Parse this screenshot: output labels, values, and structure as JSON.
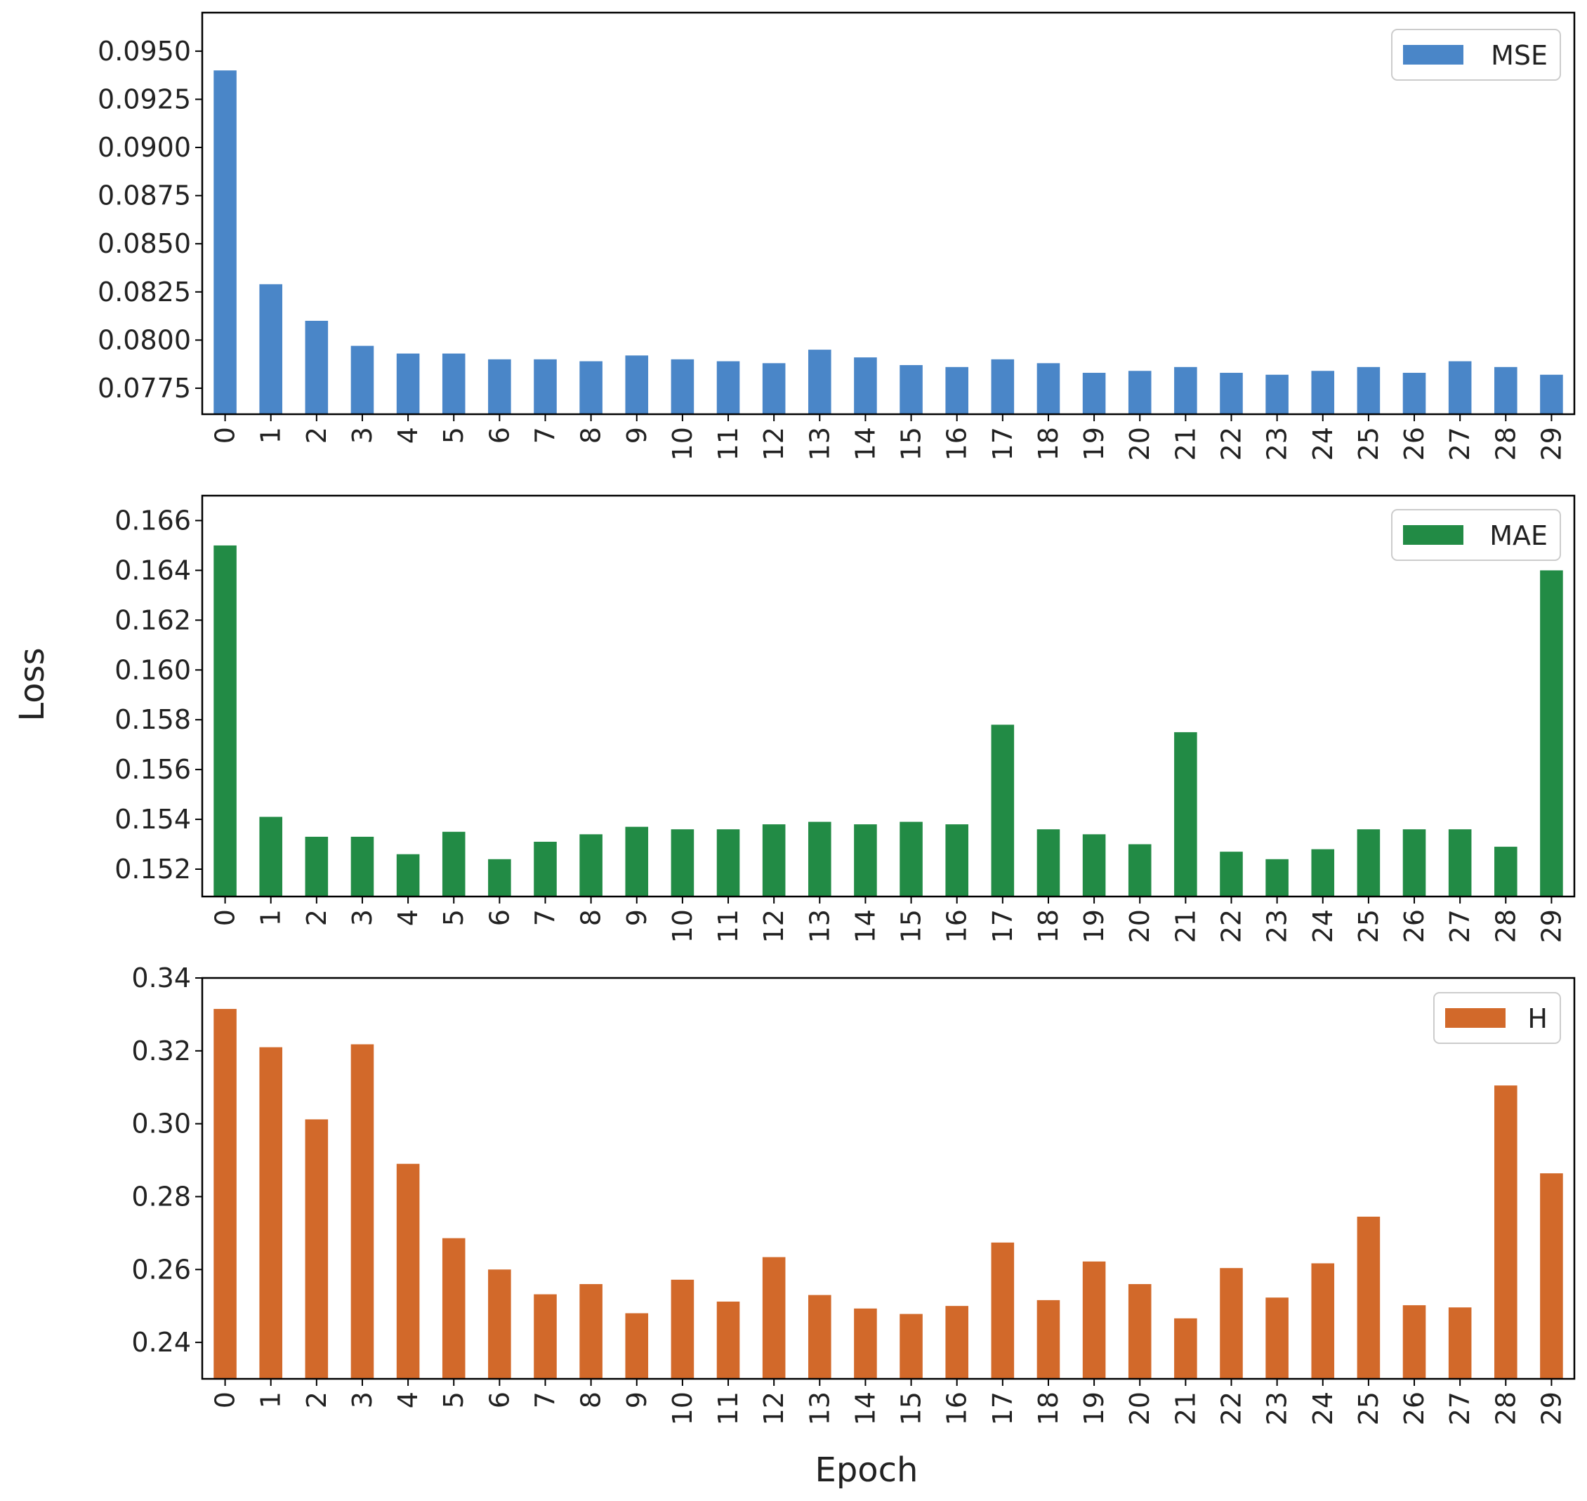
{
  "chart_data": [
    {
      "type": "bar",
      "series_name": "MSE",
      "color": "#4a86c8",
      "categories": [
        "0",
        "1",
        "2",
        "3",
        "4",
        "5",
        "6",
        "7",
        "8",
        "9",
        "10",
        "11",
        "12",
        "13",
        "14",
        "15",
        "16",
        "17",
        "18",
        "19",
        "20",
        "21",
        "22",
        "23",
        "24",
        "25",
        "26",
        "27",
        "28",
        "29"
      ],
      "values": [
        0.094,
        0.0829,
        0.081,
        0.0797,
        0.0793,
        0.0793,
        0.079,
        0.079,
        0.0789,
        0.0792,
        0.079,
        0.0789,
        0.0788,
        0.0795,
        0.0791,
        0.0787,
        0.0786,
        0.079,
        0.0788,
        0.0783,
        0.0784,
        0.0786,
        0.0783,
        0.0782,
        0.0784,
        0.0786,
        0.0783,
        0.0789,
        0.0786,
        0.0782
      ],
      "ylim": [
        0.07615,
        0.097
      ],
      "yticks": [
        0.0775,
        0.08,
        0.0825,
        0.085,
        0.0875,
        0.09,
        0.0925,
        0.095
      ],
      "ytick_labels": [
        "0.0775",
        "0.0800",
        "0.0825",
        "0.0850",
        "0.0875",
        "0.0900",
        "0.0925",
        "0.0950"
      ],
      "legend": "MSE",
      "legend_position": "top-right"
    },
    {
      "type": "bar",
      "series_name": "MAE",
      "color": "#228b45",
      "categories": [
        "0",
        "1",
        "2",
        "3",
        "4",
        "5",
        "6",
        "7",
        "8",
        "9",
        "10",
        "11",
        "12",
        "13",
        "14",
        "15",
        "16",
        "17",
        "18",
        "19",
        "20",
        "21",
        "22",
        "23",
        "24",
        "25",
        "26",
        "27",
        "28",
        "29"
      ],
      "values": [
        0.165,
        0.1541,
        0.1533,
        0.1533,
        0.1526,
        0.1535,
        0.1524,
        0.1531,
        0.1534,
        0.1537,
        0.1536,
        0.1536,
        0.1538,
        0.1539,
        0.1538,
        0.1539,
        0.1538,
        0.1578,
        0.1536,
        0.1534,
        0.153,
        0.1575,
        0.1527,
        0.1524,
        0.1528,
        0.1536,
        0.1536,
        0.1536,
        0.1529,
        0.164
      ],
      "ylim": [
        0.1509,
        0.167
      ],
      "yticks": [
        0.152,
        0.154,
        0.156,
        0.158,
        0.16,
        0.162,
        0.164,
        0.166
      ],
      "ytick_labels": [
        "0.152",
        "0.154",
        "0.156",
        "0.158",
        "0.160",
        "0.162",
        "0.164",
        "0.166"
      ],
      "legend": "MAE",
      "legend_position": "top-right"
    },
    {
      "type": "bar",
      "series_name": "H",
      "color": "#d2692a",
      "categories": [
        "0",
        "1",
        "2",
        "3",
        "4",
        "5",
        "6",
        "7",
        "8",
        "9",
        "10",
        "11",
        "12",
        "13",
        "14",
        "15",
        "16",
        "17",
        "18",
        "19",
        "20",
        "21",
        "22",
        "23",
        "24",
        "25",
        "26",
        "27",
        "28",
        "29"
      ],
      "values": [
        0.3315,
        0.321,
        0.3012,
        0.3218,
        0.289,
        0.2686,
        0.26,
        0.2532,
        0.256,
        0.248,
        0.2572,
        0.2512,
        0.2634,
        0.253,
        0.2493,
        0.2478,
        0.25,
        0.2674,
        0.2516,
        0.2622,
        0.256,
        0.2466,
        0.2604,
        0.2523,
        0.2617,
        0.2745,
        0.2502,
        0.2496,
        0.3105,
        0.2864
      ],
      "ylim": [
        0.23,
        0.34
      ],
      "yticks": [
        0.24,
        0.26,
        0.28,
        0.3,
        0.32,
        0.34
      ],
      "ytick_labels": [
        "0.24",
        "0.26",
        "0.28",
        "0.30",
        "0.32",
        "0.34"
      ],
      "legend": "H",
      "legend_position": "top-right"
    }
  ],
  "ylabel": "Loss",
  "xlabel": "Epoch"
}
